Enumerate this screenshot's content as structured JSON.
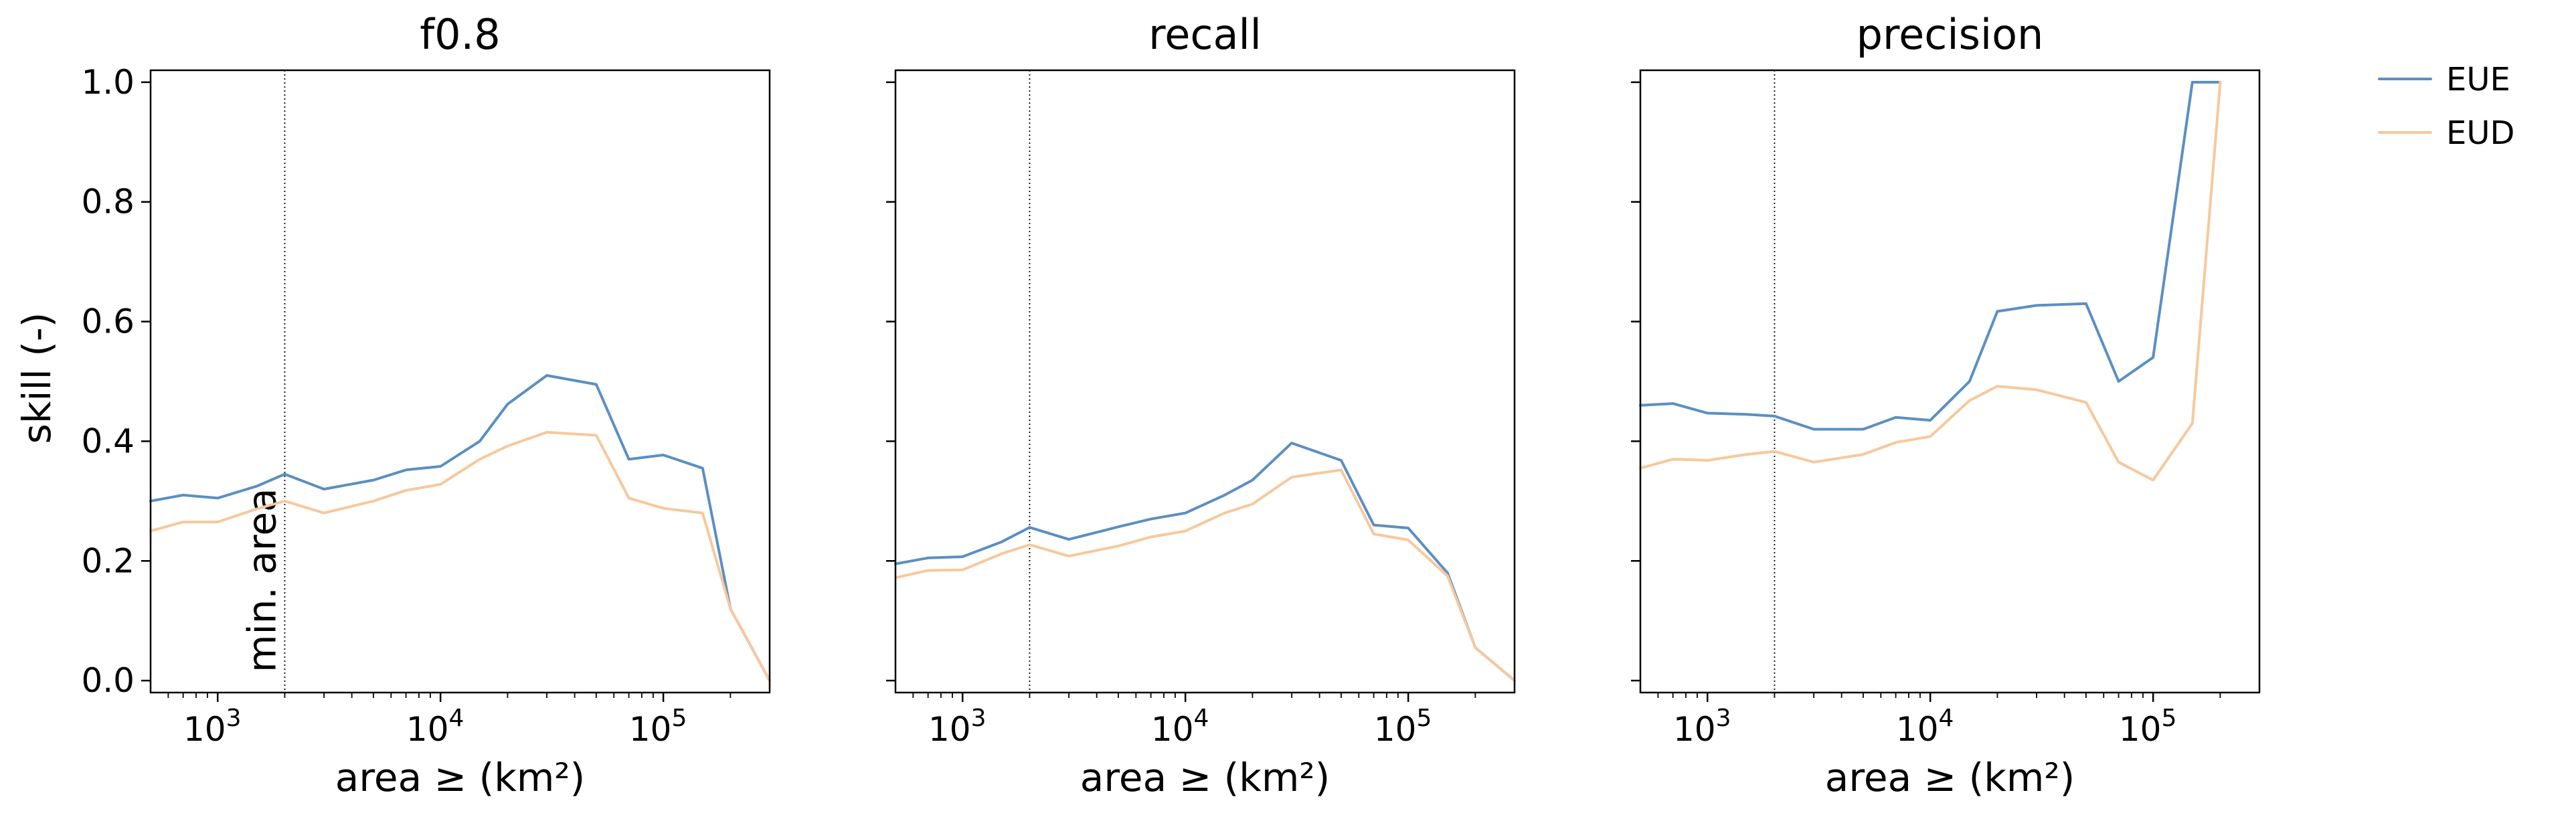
{
  "chart_data": [
    {
      "type": "line",
      "title": "f0.8",
      "xlabel": "area ≥ (km²)",
      "ylabel": "skill (-)",
      "x_scale": "log",
      "xlim": [
        500,
        300000
      ],
      "ylim": [
        -0.02,
        1.02
      ],
      "y_ticks": [
        "0.0",
        "0.2",
        "0.4",
        "0.6",
        "0.8",
        "1.0"
      ],
      "x_ticks": [
        {
          "base": "10",
          "exp": "3"
        },
        {
          "base": "10",
          "exp": "4"
        },
        {
          "base": "10",
          "exp": "5"
        }
      ],
      "vline": {
        "x": 2000,
        "label": "min. area"
      },
      "x": [
        500,
        700,
        1000,
        1500,
        2000,
        3000,
        5000,
        7000,
        10000,
        15000,
        20000,
        30000,
        50000,
        70000,
        100000,
        150000,
        200000,
        300000
      ],
      "series": [
        {
          "name": "EUE",
          "color": "#5b8fc2",
          "values": [
            0.3,
            0.31,
            0.305,
            0.325,
            0.345,
            0.32,
            0.335,
            0.352,
            0.358,
            0.4,
            0.462,
            0.51,
            0.495,
            0.37,
            0.377,
            0.355,
            0.12,
            0.0
          ]
        },
        {
          "name": "EUD",
          "color": "#f7c89c",
          "values": [
            0.25,
            0.265,
            0.265,
            0.287,
            0.3,
            0.28,
            0.3,
            0.318,
            0.328,
            0.37,
            0.392,
            0.415,
            0.41,
            0.305,
            0.288,
            0.28,
            0.12,
            0.0
          ]
        }
      ]
    },
    {
      "type": "line",
      "title": "recall",
      "xlabel": "area ≥ (km²)",
      "x_scale": "log",
      "xlim": [
        500,
        300000
      ],
      "ylim": [
        -0.02,
        1.02
      ],
      "x_ticks": [
        {
          "base": "10",
          "exp": "3"
        },
        {
          "base": "10",
          "exp": "4"
        },
        {
          "base": "10",
          "exp": "5"
        }
      ],
      "vline": {
        "x": 2000,
        "label": ""
      },
      "x": [
        500,
        700,
        1000,
        1500,
        2000,
        3000,
        5000,
        7000,
        10000,
        15000,
        20000,
        30000,
        50000,
        70000,
        100000,
        150000,
        200000,
        300000
      ],
      "series": [
        {
          "name": "EUE",
          "color": "#5b8fc2",
          "values": [
            0.195,
            0.205,
            0.207,
            0.232,
            0.256,
            0.236,
            0.257,
            0.27,
            0.28,
            0.31,
            0.335,
            0.397,
            0.368,
            0.26,
            0.255,
            0.18,
            0.055,
            0.0
          ]
        },
        {
          "name": "EUD",
          "color": "#f7c89c",
          "values": [
            0.172,
            0.184,
            0.185,
            0.212,
            0.227,
            0.208,
            0.225,
            0.24,
            0.25,
            0.28,
            0.295,
            0.34,
            0.352,
            0.245,
            0.235,
            0.175,
            0.055,
            0.0
          ]
        }
      ]
    },
    {
      "type": "line",
      "title": "precision",
      "xlabel": "area ≥ (km²)",
      "x_scale": "log",
      "xlim": [
        500,
        300000
      ],
      "ylim": [
        -0.02,
        1.02
      ],
      "x_ticks": [
        {
          "base": "10",
          "exp": "3"
        },
        {
          "base": "10",
          "exp": "4"
        },
        {
          "base": "10",
          "exp": "5"
        }
      ],
      "vline": {
        "x": 2000,
        "label": ""
      },
      "x": [
        500,
        700,
        1000,
        1500,
        2000,
        3000,
        5000,
        7000,
        10000,
        15000,
        20000,
        30000,
        50000,
        70000,
        100000,
        150000,
        200000
      ],
      "series": [
        {
          "name": "EUE",
          "color": "#5b8fc2",
          "values": [
            0.46,
            0.463,
            0.447,
            0.445,
            0.442,
            0.42,
            0.42,
            0.44,
            0.435,
            0.5,
            0.617,
            0.627,
            0.63,
            0.5,
            0.54,
            1.0,
            1.0
          ]
        },
        {
          "name": "EUD",
          "color": "#f7c89c",
          "values": [
            0.355,
            0.37,
            0.368,
            0.378,
            0.383,
            0.365,
            0.378,
            0.398,
            0.408,
            0.468,
            0.492,
            0.486,
            0.465,
            0.365,
            0.335,
            0.43,
            1.0
          ]
        }
      ]
    }
  ],
  "legend": {
    "placement": "top-right outside",
    "items": [
      {
        "name": "EUE",
        "color": "#5b8fc2"
      },
      {
        "name": "EUD",
        "color": "#f7c89c"
      }
    ]
  }
}
